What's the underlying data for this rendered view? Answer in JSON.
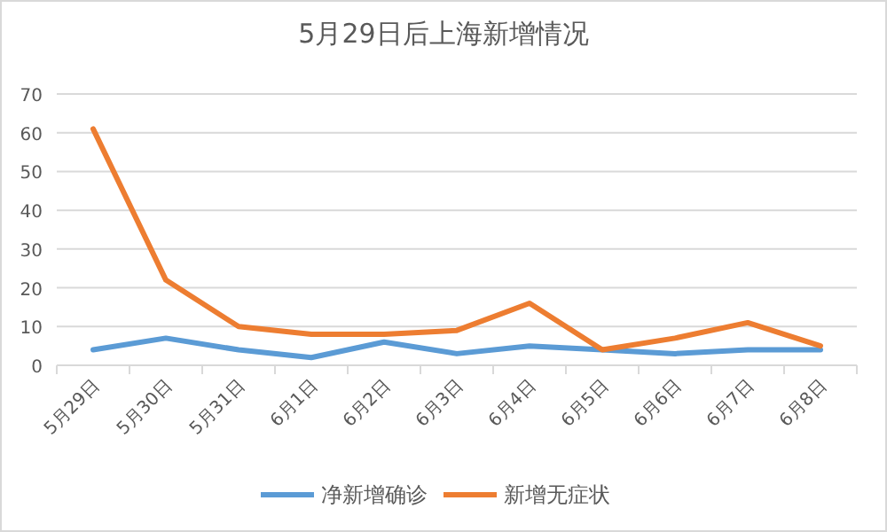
{
  "chart_data": {
    "type": "line",
    "title": "5月29日后上海新增情况",
    "categories": [
      "5月29日",
      "5月30日",
      "5月31日",
      "6月1日",
      "6月2日",
      "6月3日",
      "6月4日",
      "6月5日",
      "6月6日",
      "6月7日",
      "6月8日"
    ],
    "series": [
      {
        "name": "净新增确诊",
        "color": "#5b9bd5",
        "values": [
          4,
          7,
          4,
          2,
          6,
          3,
          5,
          4,
          3,
          4,
          4
        ]
      },
      {
        "name": "新增无症状",
        "color": "#ed7d31",
        "values": [
          61,
          22,
          10,
          8,
          8,
          9,
          16,
          4,
          7,
          11,
          5
        ]
      }
    ],
    "ylim": [
      0,
      70
    ],
    "yticks": [
      0,
      10,
      20,
      30,
      40,
      50,
      60,
      70
    ],
    "grid": "y",
    "legend": "bottom",
    "marker": "none"
  }
}
